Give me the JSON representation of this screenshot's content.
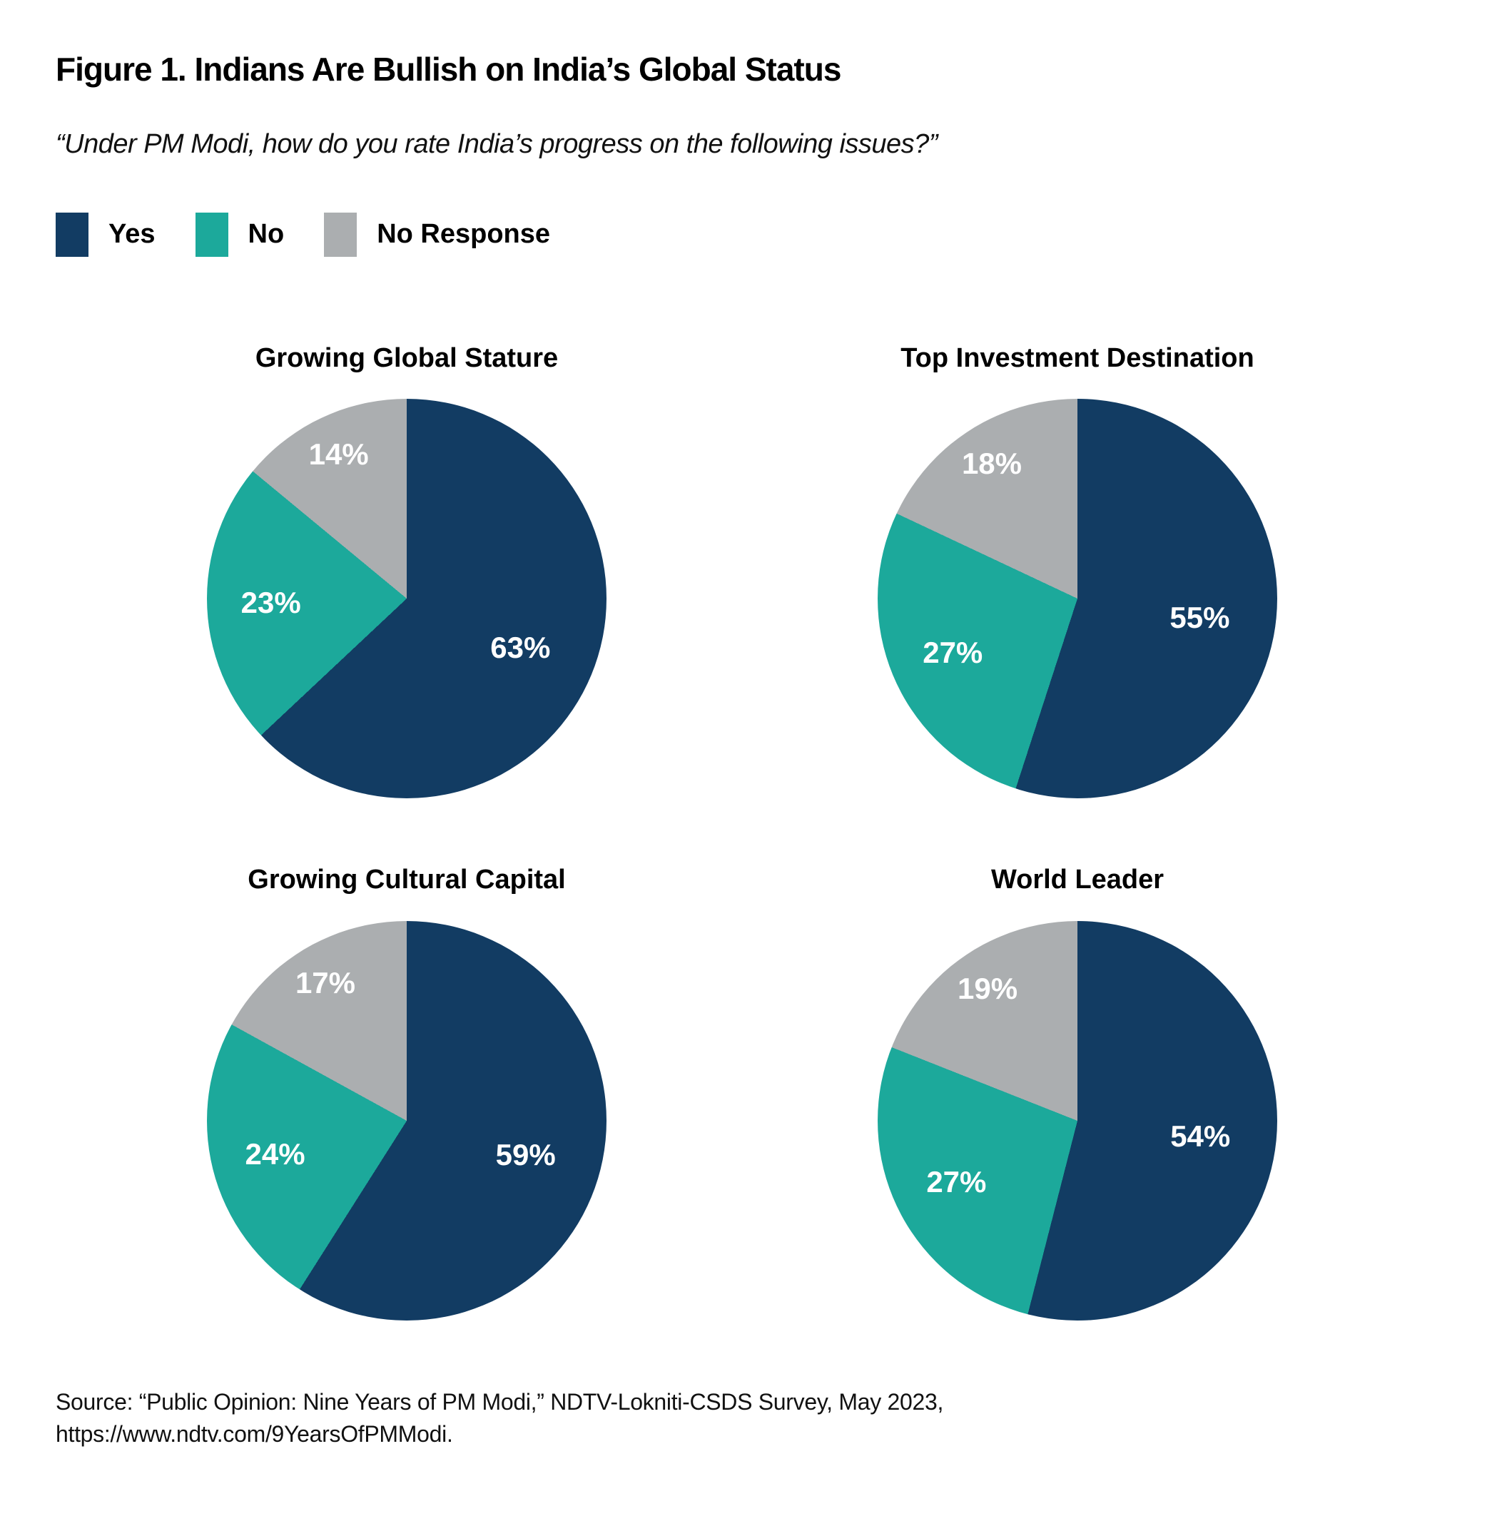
{
  "figure": {
    "title": "Figure 1. Indians Are Bullish on India’s Global Status",
    "subtitle": "“Under PM Modi, how do you rate India’s progress on the following issues?”",
    "source": {
      "line1": "Source: “Public Opinion: Nine Years of PM Modi,” NDTV-Lokniti-CSDS Survey, May 2023,",
      "line2": "https://www.ndtv.com/9YearsOfPMModi."
    }
  },
  "legend": {
    "position": "top-left",
    "items": [
      {
        "label": "Yes",
        "color": "#123C63"
      },
      {
        "label": "No",
        "color": "#1CA99B"
      },
      {
        "label": "No Response",
        "color": "#ABAEB0"
      }
    ]
  },
  "chart_data": [
    {
      "type": "pie",
      "title": "Growing Global Stature",
      "categories": [
        "Yes",
        "No",
        "No Response"
      ],
      "values": [
        63,
        23,
        14
      ],
      "labels": [
        "63%",
        "23%",
        "14%"
      ],
      "colors": [
        "#123C63",
        "#1CA99B",
        "#ABAEB0"
      ],
      "start_angle": "12-oclock",
      "direction": "clockwise",
      "label_color": "#FFFFFF"
    },
    {
      "type": "pie",
      "title": "Top Investment Destination",
      "categories": [
        "Yes",
        "No",
        "No Response"
      ],
      "values": [
        55,
        27,
        18
      ],
      "labels": [
        "55%",
        "27%",
        "18%"
      ],
      "colors": [
        "#123C63",
        "#1CA99B",
        "#ABAEB0"
      ],
      "start_angle": "12-oclock",
      "direction": "clockwise",
      "label_color": "#FFFFFF"
    },
    {
      "type": "pie",
      "title": "Growing Cultural Capital",
      "categories": [
        "Yes",
        "No",
        "No Response"
      ],
      "values": [
        59,
        24,
        17
      ],
      "labels": [
        "59%",
        "24%",
        "17%"
      ],
      "colors": [
        "#123C63",
        "#1CA99B",
        "#ABAEB0"
      ],
      "start_angle": "12-oclock",
      "direction": "clockwise",
      "label_color": "#FFFFFF"
    },
    {
      "type": "pie",
      "title": "World Leader",
      "categories": [
        "Yes",
        "No",
        "No Response"
      ],
      "values": [
        54,
        27,
        19
      ],
      "labels": [
        "54%",
        "27%",
        "19%"
      ],
      "colors": [
        "#123C63",
        "#1CA99B",
        "#ABAEB0"
      ],
      "start_angle": "12-oclock",
      "direction": "clockwise",
      "label_color": "#FFFFFF"
    }
  ]
}
